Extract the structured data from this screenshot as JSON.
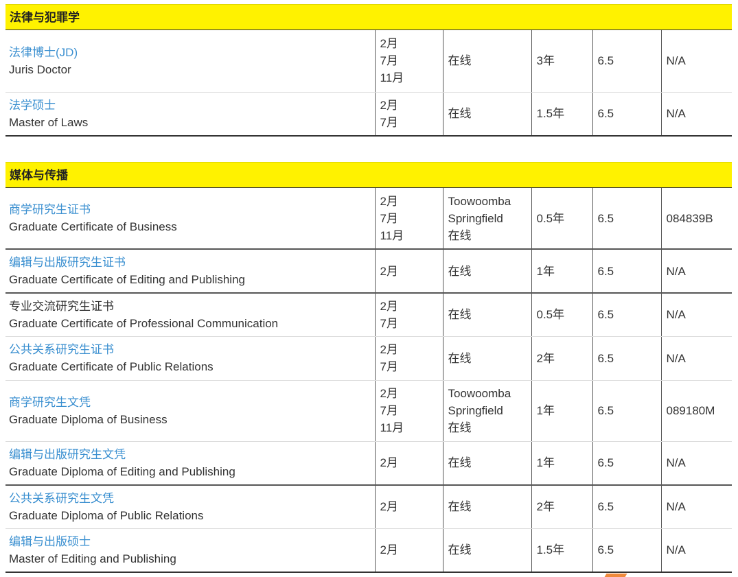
{
  "sections": [
    {
      "title": "法律与犯罪学",
      "rows": [
        {
          "cn": "法律博士(JD)",
          "en": "Juris Doctor",
          "link": true,
          "intakes": [
            "2月",
            "7月",
            "11月"
          ],
          "campus": [
            "在线"
          ],
          "duration": "3年",
          "ielts": "6.5",
          "cricos": "N/A"
        },
        {
          "cn": "法学硕士",
          "en": "Master of Laws",
          "link": true,
          "intakes": [
            "2月",
            "7月"
          ],
          "campus": [
            "在线"
          ],
          "duration": "1.5年",
          "ielts": "6.5",
          "cricos": "N/A"
        }
      ]
    },
    {
      "title": "媒体与传播",
      "rows": [
        {
          "cn": "商学研究生证书",
          "en": "Graduate Certificate of Business",
          "link": true,
          "intakes": [
            "2月",
            "7月",
            "11月"
          ],
          "campus": [
            "Toowoomba",
            "Springfield",
            "在线"
          ],
          "duration": "0.5年",
          "ielts": "6.5",
          "cricos": "084839B"
        },
        {
          "cn": "编辑与出版研究生证书",
          "en": "Graduate Certificate of Editing and Publishing",
          "link": true,
          "intakes": [
            "2月"
          ],
          "campus": [
            "在线"
          ],
          "duration": "1年",
          "ielts": "6.5",
          "cricos": "N/A"
        },
        {
          "cn": "专业交流研究生证书",
          "en": "Graduate Certificate of Professional Communication",
          "link": false,
          "intakes": [
            "2月",
            "7月"
          ],
          "campus": [
            "在线"
          ],
          "duration": "0.5年",
          "ielts": "6.5",
          "cricos": "N/A"
        },
        {
          "cn": "公共关系研究生证书",
          "en": "Graduate Certificate of Public Relations",
          "link": true,
          "intakes": [
            "2月",
            "7月"
          ],
          "campus": [
            "在线"
          ],
          "duration": "2年",
          "ielts": "6.5",
          "cricos": "N/A"
        },
        {
          "cn": "商学研究生文凭",
          "en": "Graduate Diploma of Business",
          "link": true,
          "intakes": [
            "2月",
            "7月",
            "11月"
          ],
          "campus": [
            "Toowoomba",
            "Springfield",
            "在线"
          ],
          "duration": "1年",
          "ielts": "6.5",
          "cricos": "089180M"
        },
        {
          "cn": "编辑与出版研究生文凭",
          "en": "Graduate Diploma of Editing and Publishing",
          "link": true,
          "intakes": [
            "2月"
          ],
          "campus": [
            "在线"
          ],
          "duration": "1年",
          "ielts": "6.5",
          "cricos": "N/A"
        },
        {
          "cn": "公共关系研究生文凭",
          "en": "Graduate Diploma of Public Relations",
          "link": true,
          "intakes": [
            "2月"
          ],
          "campus": [
            "在线"
          ],
          "duration": "2年",
          "ielts": "6.5",
          "cricos": "N/A"
        },
        {
          "cn": "编辑与出版硕士",
          "en": "Master of Editing and Publishing",
          "link": true,
          "intakes": [
            "2月"
          ],
          "campus": [
            "在线"
          ],
          "duration": "1.5年",
          "ielts": "6.5",
          "cricos": "N/A"
        }
      ]
    }
  ]
}
